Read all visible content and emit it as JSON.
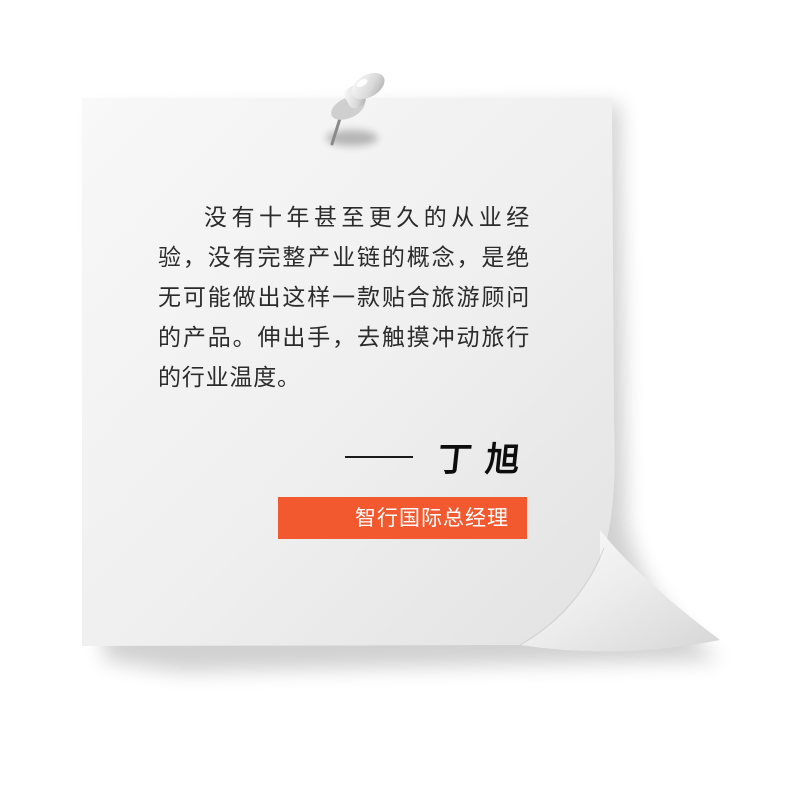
{
  "quote": {
    "text": "没有十年甚至更久的从业经验，没有完整产业链的概念，是绝无可能做出这样一款贴合旅游顾问的产品。伸出手，去触摸冲动旅行的行业温度。"
  },
  "signature": {
    "name": "丁旭"
  },
  "badge": {
    "label": "智行国际总经理"
  },
  "colors": {
    "badge_background": "#f2592f",
    "paper": "#f4f4f4",
    "text": "#2b2b2b"
  },
  "icons": {
    "pin": "push-pin-icon"
  }
}
